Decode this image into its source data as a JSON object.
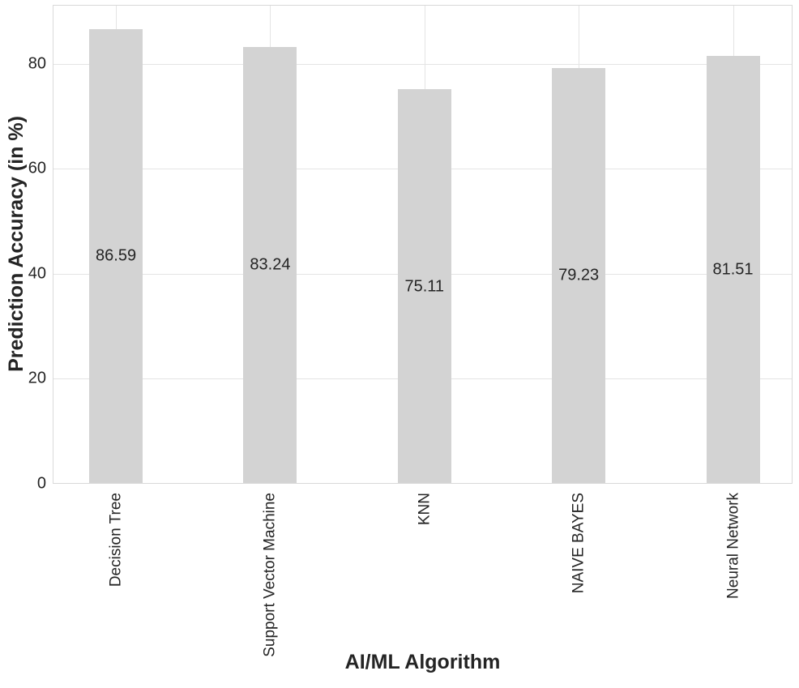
{
  "chart_data": {
    "type": "bar",
    "title": "",
    "categories": [
      "Decision Tree",
      "Support Vector Machine",
      "KNN",
      "NAIVE BAYES",
      "Neural Network"
    ],
    "values": [
      86.59,
      83.24,
      75.11,
      79.23,
      81.51
    ],
    "value_labels": [
      "86.59",
      "83.24",
      "75.11",
      "79.23",
      "81.51"
    ],
    "xlabel": "AI/ML Algorithm",
    "ylabel": "Prediction Accuracy (in %)",
    "ylim": [
      0,
      91.2
    ],
    "yticks": [
      0,
      20,
      40,
      60,
      80
    ],
    "grid": true,
    "legend": "none",
    "bar_value_label_position": "center-of-bar",
    "xtick_label_rotation_degrees": 90,
    "colors": {
      "bar_fill": "#d3d3d3",
      "grid_line": "#e4e4e4",
      "plot_border": "#d9d9d9",
      "text": "#242424",
      "background": "#ffffff"
    }
  }
}
